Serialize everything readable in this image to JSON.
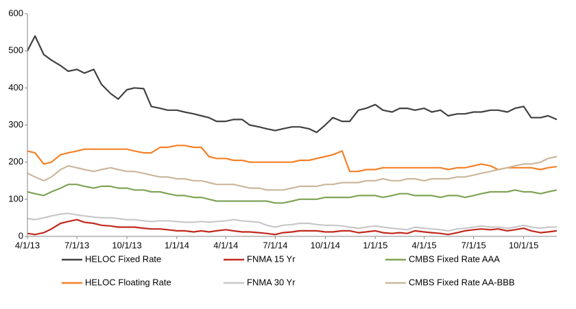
{
  "chart_data": {
    "type": "line",
    "x": [
      "2013-04-01",
      "2013-04-15",
      "2013-05-01",
      "2013-05-15",
      "2013-06-01",
      "2013-06-15",
      "2013-07-01",
      "2013-07-15",
      "2013-08-01",
      "2013-08-15",
      "2013-09-01",
      "2013-09-15",
      "2013-10-01",
      "2013-10-15",
      "2013-11-01",
      "2013-11-15",
      "2013-12-01",
      "2013-12-15",
      "2014-01-01",
      "2014-01-15",
      "2014-02-01",
      "2014-02-15",
      "2014-03-01",
      "2014-03-15",
      "2014-04-01",
      "2014-04-15",
      "2014-05-01",
      "2014-05-15",
      "2014-06-01",
      "2014-06-15",
      "2014-07-01",
      "2014-07-15",
      "2014-08-01",
      "2014-08-15",
      "2014-09-01",
      "2014-09-15",
      "2014-10-01",
      "2014-10-15",
      "2014-11-01",
      "2014-11-15",
      "2014-12-01",
      "2014-12-15",
      "2015-01-01",
      "2015-01-15",
      "2015-02-01",
      "2015-02-15",
      "2015-03-01",
      "2015-03-15",
      "2015-04-01",
      "2015-04-15",
      "2015-05-01",
      "2015-05-15",
      "2015-06-01",
      "2015-06-15",
      "2015-07-01",
      "2015-07-15",
      "2015-08-01",
      "2015-08-15",
      "2015-09-01",
      "2015-09-15",
      "2015-10-01",
      "2015-10-15",
      "2015-11-01",
      "2015-11-15",
      "2015-12-01"
    ],
    "series": [
      {
        "name": "HELOC Fixed Rate",
        "color": "#404040",
        "values": [
          500,
          540,
          490,
          475,
          460,
          445,
          450,
          440,
          450,
          410,
          385,
          370,
          395,
          400,
          398,
          350,
          345,
          340,
          340,
          335,
          330,
          325,
          320,
          310,
          310,
          315,
          315,
          300,
          295,
          290,
          285,
          290,
          295,
          295,
          290,
          280,
          300,
          320,
          310,
          310,
          340,
          345,
          355,
          340,
          335,
          345,
          345,
          340,
          345,
          335,
          340,
          325,
          330,
          330,
          335,
          335,
          340,
          340,
          335,
          345,
          350,
          320,
          320,
          325,
          315
        ]
      },
      {
        "name": "HELOC Floating Rate",
        "color": "#f58025",
        "values": [
          230,
          225,
          195,
          200,
          220,
          225,
          230,
          235,
          235,
          235,
          235,
          235,
          235,
          230,
          225,
          225,
          240,
          240,
          245,
          245,
          240,
          240,
          215,
          210,
          210,
          205,
          205,
          200,
          200,
          200,
          200,
          200,
          200,
          205,
          205,
          210,
          215,
          220,
          230,
          175,
          175,
          180,
          180,
          185,
          185,
          185,
          185,
          185,
          185,
          185,
          185,
          180,
          185,
          185,
          190,
          195,
          190,
          180,
          185,
          185,
          185,
          185,
          180,
          185,
          188
        ]
      },
      {
        "name": "FNMA 15 Yr",
        "color": "#c0281c",
        "values": [
          8,
          5,
          10,
          20,
          35,
          40,
          45,
          38,
          35,
          30,
          28,
          25,
          25,
          25,
          22,
          20,
          20,
          18,
          15,
          15,
          12,
          15,
          12,
          15,
          18,
          15,
          12,
          12,
          10,
          8,
          5,
          10,
          12,
          15,
          15,
          15,
          12,
          12,
          15,
          15,
          10,
          12,
          15,
          10,
          8,
          10,
          8,
          15,
          12,
          10,
          8,
          5,
          10,
          15,
          18,
          20,
          18,
          20,
          15,
          18,
          22,
          15,
          10,
          12,
          15
        ]
      },
      {
        "name": "FNMA 30 Yr",
        "color": "#c8c8c8",
        "values": [
          48,
          45,
          50,
          55,
          60,
          62,
          58,
          55,
          52,
          50,
          50,
          48,
          45,
          45,
          42,
          40,
          42,
          42,
          40,
          38,
          38,
          40,
          38,
          40,
          42,
          45,
          42,
          40,
          38,
          30,
          25,
          30,
          32,
          35,
          35,
          32,
          30,
          30,
          28,
          25,
          22,
          25,
          28,
          25,
          22,
          20,
          18,
          25,
          22,
          20,
          18,
          15,
          20,
          22,
          25,
          28,
          25,
          25,
          22,
          25,
          30,
          25,
          22,
          25,
          25
        ]
      },
      {
        "name": "CMBS Fixed Rate AAA",
        "color": "#7ea356",
        "values": [
          120,
          115,
          110,
          120,
          130,
          140,
          140,
          135,
          130,
          135,
          135,
          130,
          130,
          125,
          125,
          120,
          120,
          115,
          110,
          110,
          105,
          105,
          100,
          95,
          95,
          95,
          95,
          95,
          95,
          95,
          90,
          90,
          95,
          100,
          100,
          100,
          105,
          105,
          105,
          105,
          110,
          110,
          110,
          105,
          110,
          115,
          115,
          110,
          110,
          110,
          105,
          110,
          110,
          105,
          110,
          115,
          120,
          120,
          120,
          125,
          120,
          120,
          115,
          120,
          125
        ]
      },
      {
        "name": "CMBS Fixed Rate AA-BBB",
        "color": "#cbb79c",
        "values": [
          170,
          160,
          150,
          160,
          180,
          190,
          185,
          180,
          175,
          180,
          185,
          180,
          175,
          175,
          170,
          165,
          160,
          160,
          155,
          155,
          150,
          150,
          145,
          140,
          140,
          140,
          135,
          130,
          130,
          125,
          125,
          125,
          130,
          135,
          135,
          135,
          140,
          140,
          145,
          145,
          145,
          150,
          150,
          155,
          150,
          150,
          155,
          155,
          150,
          155,
          155,
          155,
          160,
          160,
          165,
          170,
          175,
          180,
          185,
          190,
          195,
          195,
          200,
          210,
          215
        ]
      }
    ],
    "xlim": [
      "2013-04-01",
      "2015-12-01"
    ],
    "xticks": [
      {
        "value": "2013-04-01",
        "label": "4/1/13"
      },
      {
        "value": "2013-07-01",
        "label": "7/1/13"
      },
      {
        "value": "2013-10-01",
        "label": "10/1/13"
      },
      {
        "value": "2014-01-01",
        "label": "1/1/14"
      },
      {
        "value": "2014-04-01",
        "label": "4/1/14"
      },
      {
        "value": "2014-07-01",
        "label": "7/1/14"
      },
      {
        "value": "2014-10-01",
        "label": "10/1/14"
      },
      {
        "value": "2015-01-01",
        "label": "1/1/15"
      },
      {
        "value": "2015-04-01",
        "label": "4/1/15"
      },
      {
        "value": "2015-07-01",
        "label": "7/1/15"
      },
      {
        "value": "2015-10-01",
        "label": "10/1/15"
      }
    ],
    "ylim": [
      0,
      600
    ],
    "yticks": [
      0,
      100,
      200,
      300,
      400,
      500,
      600
    ],
    "grid": false
  }
}
